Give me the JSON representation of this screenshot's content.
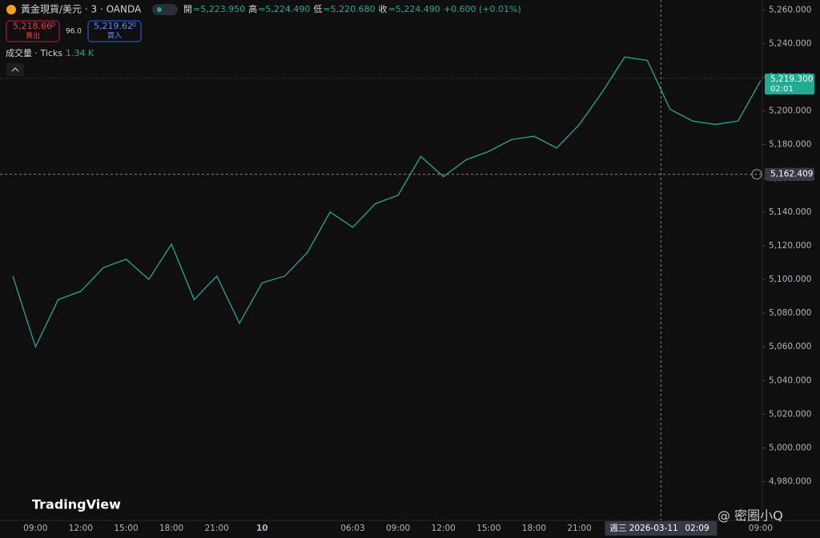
{
  "header": {
    "symbol": "黃金現貨/美元 · 3 · OANDA",
    "ohlc": [
      {
        "k": "開",
        "v": "=5,223.950"
      },
      {
        "k": "高",
        "v": "=5,224.490"
      },
      {
        "k": "低",
        "v": "=5,220.680"
      },
      {
        "k": "收",
        "v": "=5,224.490"
      }
    ],
    "change": "+0.600 (+0.01%)",
    "sell": {
      "price": "5,218.66",
      "sup": "0",
      "label": "賣出"
    },
    "spread": "96.0",
    "buy": {
      "price": "5,219.62",
      "sup": "0",
      "label": "買入"
    },
    "volume": {
      "label": "成交量 · Ticks",
      "value": "1.34 K"
    }
  },
  "chart_data": {
    "type": "line",
    "color": "#26a69a",
    "categories": [
      null,
      "09:00",
      null,
      "12:00",
      null,
      "15:00",
      null,
      "18:00",
      null,
      "21:00",
      null,
      "10",
      null,
      null,
      null,
      "06:03",
      null,
      "09:00",
      null,
      "12:00",
      null,
      "15:00",
      null,
      "18:00",
      null,
      "21:00",
      null,
      null,
      null,
      null,
      null,
      null,
      null,
      "09:00"
    ],
    "values": [
      5102,
      5060,
      5088,
      5093,
      5107,
      5112,
      5100,
      5121,
      5088,
      5102,
      5074,
      5098,
      5102,
      5116,
      5140,
      5131,
      5145,
      5150,
      5173,
      5161,
      5171,
      5176,
      5183,
      5185,
      5178,
      5192,
      5211,
      5232,
      5230,
      5201,
      5194,
      5192,
      5194,
      5218
    ],
    "ylim": [
      4957,
      5263
    ],
    "yticks": [
      {
        "value": 5260,
        "label": "5,260.000"
      },
      {
        "value": 5240,
        "label": "5,240.000"
      },
      {
        "value": 5220,
        "label": "5,220.000"
      },
      {
        "value": 5200,
        "label": "5,200.000"
      },
      {
        "value": 5180,
        "label": "5,180.000"
      },
      {
        "value": 5160,
        "label": "5,160.000"
      },
      {
        "value": 5140,
        "label": "5,140.000"
      },
      {
        "value": 5120,
        "label": "5,120.000"
      },
      {
        "value": 5100,
        "label": "5,100.000"
      },
      {
        "value": 5080,
        "label": "5,080.000"
      },
      {
        "value": 5060,
        "label": "5,060.000"
      },
      {
        "value": 5040,
        "label": "5,040.000"
      },
      {
        "value": 5020,
        "label": "5,020.000"
      },
      {
        "value": 5000,
        "label": "5,000.000"
      },
      {
        "value": 4980,
        "label": "4,980.000"
      }
    ],
    "last_price": {
      "value": 5219.3,
      "label": "5,219.300",
      "countdown": "02:01"
    },
    "crosshair": {
      "value": 5162.409,
      "label": "5,162.409",
      "date": "週三 2026-03-11",
      "time": "02:09"
    }
  },
  "branding": "TradingView",
  "watermark": "@ 密圈小Q"
}
